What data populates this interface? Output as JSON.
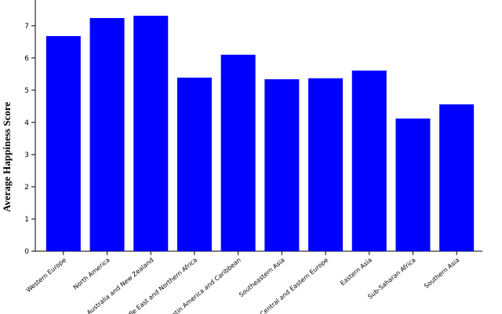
{
  "chart_data": {
    "type": "bar",
    "ylabel": "Average Happiness Score",
    "categories": [
      "Western Europe",
      "North America",
      "Australia and New Zealand",
      "Middle East and Northern Africa",
      "Latin America and Caribbean",
      "Southeastern Asia",
      "Central and Eastern Europe",
      "Eastern Asia",
      "Sub-Saharan Africa",
      "Southern Asia"
    ],
    "values": [
      6.68,
      7.24,
      7.31,
      5.39,
      6.1,
      5.34,
      5.37,
      5.61,
      4.12,
      4.56
    ],
    "color": "#0000ff",
    "ylim": [
      0,
      7.8
    ],
    "yticks": [
      0,
      1,
      2,
      3,
      4,
      5,
      6,
      7
    ]
  }
}
